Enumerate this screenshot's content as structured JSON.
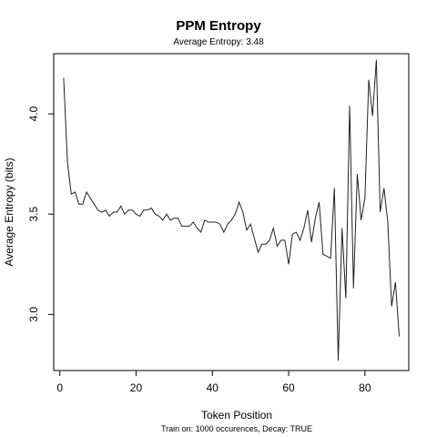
{
  "chart_data": {
    "type": "line",
    "title": "PPM Entropy",
    "subtitle": "Average Entropy: 3.48",
    "xlabel": "Token Position",
    "ylabel": "Average Entropy (bits)",
    "footnote": "Train on: 1000 occurences, Decay: TRUE",
    "xlim": [
      -1.6,
      91.5
    ],
    "ylim": [
      2.72,
      4.3
    ],
    "x_ticks": [
      0,
      20,
      40,
      60,
      80
    ],
    "y_ticks": [
      3.0,
      3.5,
      4.0
    ],
    "x_tick_labels": [
      "0",
      "20",
      "40",
      "60",
      "80"
    ],
    "y_tick_labels": [
      "3.0",
      "3.5",
      "4.0"
    ],
    "grid": false,
    "series": [
      {
        "x": [
          1,
          2,
          3,
          4,
          5,
          6,
          7,
          8,
          9,
          10,
          11,
          12,
          13,
          14,
          15,
          16,
          17,
          18,
          19,
          20,
          21,
          22,
          23,
          24,
          25,
          26,
          27,
          28,
          29,
          30,
          31,
          32,
          33,
          34,
          35,
          36,
          37,
          38,
          39,
          40,
          41,
          42,
          43,
          44,
          45,
          46,
          47,
          48,
          49,
          50,
          51,
          52,
          53,
          54,
          55,
          56,
          57,
          58,
          59,
          60,
          61,
          62,
          63,
          64,
          65,
          66,
          67,
          68,
          69,
          70,
          71,
          72,
          73,
          74,
          75,
          76,
          77,
          78,
          79,
          80,
          81,
          82,
          83,
          84,
          85,
          86,
          87,
          88,
          89
        ],
        "y": [
          4.18,
          3.76,
          3.6,
          3.61,
          3.55,
          3.55,
          3.61,
          3.58,
          3.55,
          3.52,
          3.51,
          3.52,
          3.49,
          3.51,
          3.51,
          3.54,
          3.5,
          3.52,
          3.52,
          3.5,
          3.49,
          3.52,
          3.52,
          3.53,
          3.5,
          3.49,
          3.47,
          3.5,
          3.47,
          3.48,
          3.48,
          3.44,
          3.44,
          3.44,
          3.46,
          3.43,
          3.41,
          3.47,
          3.46,
          3.46,
          3.46,
          3.45,
          3.41,
          3.45,
          3.47,
          3.5,
          3.56,
          3.51,
          3.42,
          3.45,
          3.38,
          3.31,
          3.35,
          3.35,
          3.37,
          3.43,
          3.34,
          3.37,
          3.37,
          3.25,
          3.4,
          3.41,
          3.37,
          3.43,
          3.52,
          3.36,
          3.48,
          3.56,
          3.3,
          3.29,
          3.28,
          3.63,
          2.77,
          3.43,
          3.08,
          4.04,
          3.13,
          3.7,
          3.47,
          3.58,
          4.17,
          3.99,
          4.27,
          3.51,
          3.63,
          3.46,
          3.04,
          3.16,
          2.89
        ]
      }
    ]
  }
}
